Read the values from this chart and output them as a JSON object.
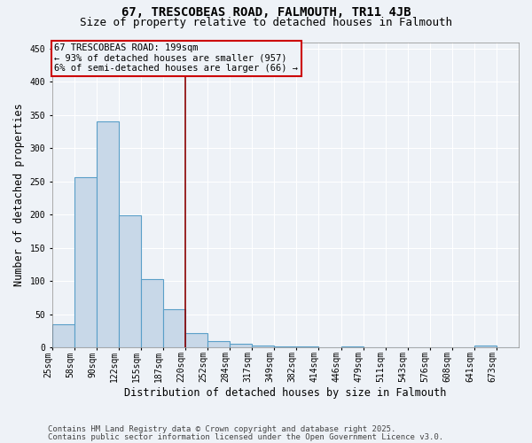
{
  "title": "67, TRESCOBEAS ROAD, FALMOUTH, TR11 4JB",
  "subtitle": "Size of property relative to detached houses in Falmouth",
  "xlabel": "Distribution of detached houses by size in Falmouth",
  "ylabel": "Number of detached properties",
  "footnote1": "Contains HM Land Registry data © Crown copyright and database right 2025.",
  "footnote2": "Contains public sector information licensed under the Open Government Licence v3.0.",
  "bin_labels": [
    "25sqm",
    "58sqm",
    "90sqm",
    "122sqm",
    "155sqm",
    "187sqm",
    "220sqm",
    "252sqm",
    "284sqm",
    "317sqm",
    "349sqm",
    "382sqm",
    "414sqm",
    "446sqm",
    "479sqm",
    "511sqm",
    "543sqm",
    "576sqm",
    "608sqm",
    "641sqm",
    "673sqm"
  ],
  "bar_heights": [
    35,
    256,
    341,
    199,
    103,
    57,
    21,
    10,
    6,
    3,
    2,
    1,
    0,
    2,
    0,
    0,
    0,
    0,
    0,
    3,
    0
  ],
  "bar_color": "#c8d8e8",
  "bar_edge_color": "#5a9fc8",
  "vline_pos": 6.0,
  "vline_color": "#880000",
  "annotation_text": "67 TRESCOBEAS ROAD: 199sqm\n← 93% of detached houses are smaller (957)\n6% of semi-detached houses are larger (66) →",
  "annotation_box_color": "#cc0000",
  "ylim": [
    0,
    460
  ],
  "background_color": "#eef2f7",
  "grid_color": "#ffffff",
  "title_fontsize": 10,
  "subtitle_fontsize": 9,
  "label_fontsize": 8.5,
  "tick_fontsize": 7,
  "footnote_fontsize": 6.5,
  "annotation_fontsize": 7.5
}
